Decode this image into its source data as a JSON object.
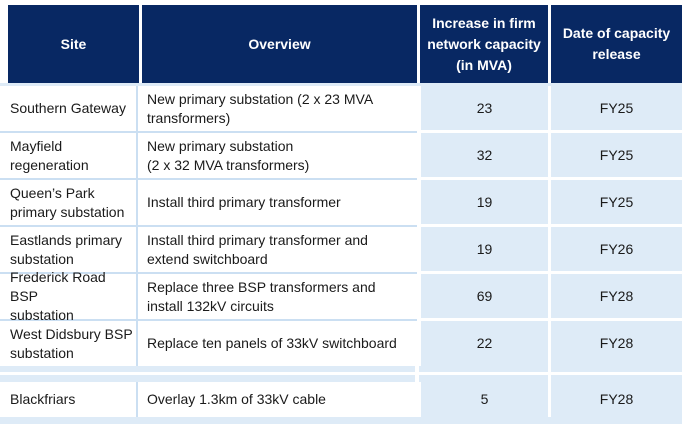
{
  "colors": {
    "header_bg": "#082863",
    "header_text": "#ffffff",
    "cell_blue": "#deebf7",
    "divider_blue": "#cbdff2",
    "body_text": "#1a1a1a"
  },
  "table": {
    "headers": [
      "Site",
      "Overview",
      "Increase in firm\nnetwork capacity\n(in MVA)",
      "Date of capacity\nrelease"
    ],
    "rows": [
      {
        "site": "Southern Gateway",
        "overview": "New primary substation (2 x 23 MVA\ntransformers)",
        "capacity_mva": "23",
        "release_date": "FY25"
      },
      {
        "site": "Mayfield\nregeneration",
        "overview": "New primary substation\n(2 x 32 MVA transformers)",
        "capacity_mva": "32",
        "release_date": "FY25"
      },
      {
        "site": "Queen’s Park\nprimary substation",
        "overview": "Install third primary transformer",
        "capacity_mva": "19",
        "release_date": "FY25"
      },
      {
        "site": "Eastlands primary\nsubstation",
        "overview": "Install third primary transformer and\nextend switchboard",
        "capacity_mva": "19",
        "release_date": "FY26"
      },
      {
        "site": "Frederick Road BSP\nsubstation",
        "overview": "Replace three BSP transformers and\ninstall 132kV circuits",
        "capacity_mva": "69",
        "release_date": "FY28"
      },
      {
        "site": "West Didsbury BSP\nsubstation",
        "overview": "Replace ten panels of 33kV switchboard",
        "capacity_mva": "22",
        "release_date": "FY28"
      },
      {
        "site": "Blackfriars",
        "overview": "Overlay 1.3km of 33kV cable",
        "capacity_mva": "5",
        "release_date": "FY28"
      }
    ]
  }
}
